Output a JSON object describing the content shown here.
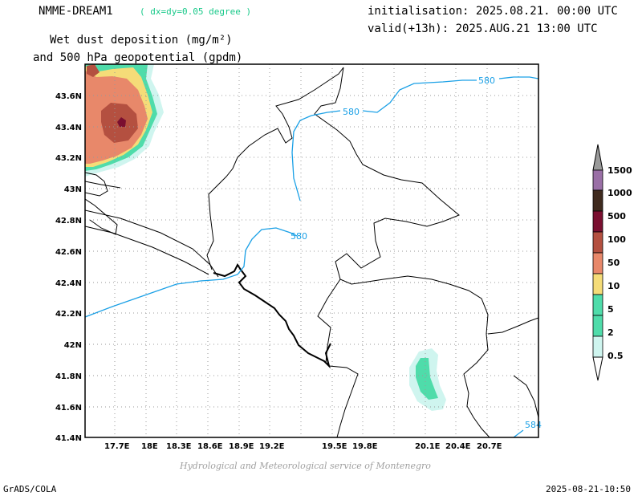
{
  "header": {
    "model": "NMME-DREAM1",
    "resolution": "( dx=dy=0.05 degree )",
    "variable_line1": "Wet dust deposition (mg/m²)",
    "variable_line2": "and 500 hPa geopotential (gpdm)",
    "init": "initialisation: 2025.08.21. 00:00 UTC",
    "valid": "valid(+13h): 2025.AUG.21 13:00 UTC"
  },
  "credit": "Hydrological and Meteorological service of Montenegro",
  "footer": {
    "left": "GrADS/COLA",
    "right": "2025-08-21-10:50"
  },
  "map": {
    "lon_labels": [
      "17.7E",
      "18E",
      "18.3E",
      "18.6E",
      "18.9E",
      "19.2E",
      "19.5E",
      "19.8E",
      "20.1E",
      "20.4E",
      "20.7E"
    ],
    "lat_labels": [
      "43.6N",
      "43.4N",
      "43.2N",
      "43N",
      "42.8N",
      "42.6N",
      "42.4N",
      "42.2N",
      "42N",
      "41.8N",
      "41.6N",
      "41.4N"
    ],
    "contour_labels": [
      "580",
      "580",
      "580",
      "584"
    ],
    "colors": {
      "contour": "#1aa0e6",
      "frame": "#000000",
      "grid": "#999999"
    }
  },
  "legend": {
    "levels": [
      "1500",
      "1000",
      "500",
      "100",
      "50",
      "10",
      "5",
      "2",
      "0.5"
    ],
    "colors": [
      "#9a9a9a",
      "#9a6fa6",
      "#3f2a1e",
      "#7a0f30",
      "#b45040",
      "#e8886a",
      "#f5dc78",
      "#4fdcaa",
      "#cff5ef"
    ]
  }
}
